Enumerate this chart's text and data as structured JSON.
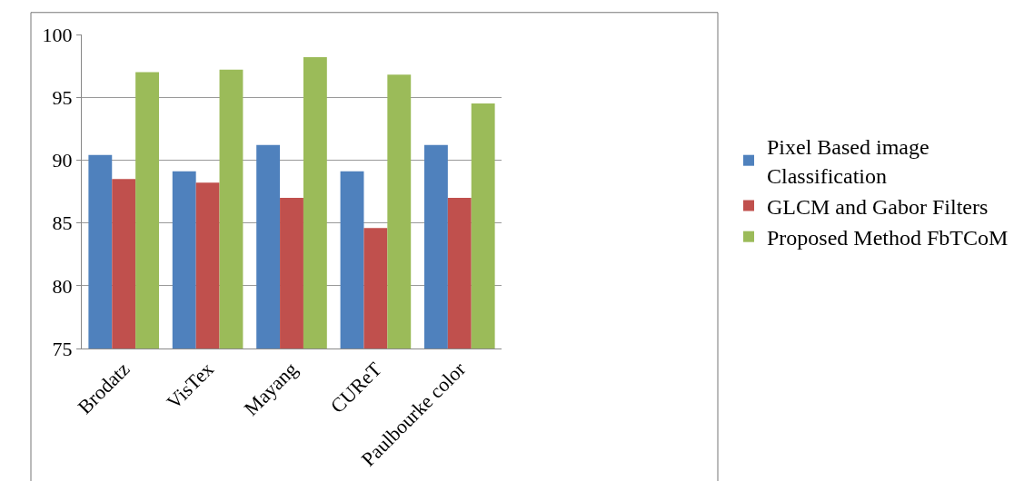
{
  "chart_data": {
    "type": "bar",
    "categories": [
      "Brodatz",
      "VisTex",
      "Mayang",
      "CUReT",
      "Paulbourke color"
    ],
    "series": [
      {
        "name": "Pixel Based image Classification",
        "color": "#4f81bd",
        "values": [
          90.4,
          89.1,
          91.2,
          89.1,
          91.2
        ]
      },
      {
        "name": "GLCM and Gabor Filters",
        "color": "#c0504d",
        "values": [
          88.5,
          88.2,
          87.0,
          84.6,
          87.0
        ]
      },
      {
        "name": "Proposed Method FbTCoM",
        "color": "#9bbb59",
        "values": [
          97.0,
          97.2,
          98.2,
          96.8,
          94.5
        ]
      }
    ],
    "ylim": [
      75,
      100
    ],
    "yticks": [
      75,
      80,
      85,
      90,
      95,
      100
    ],
    "grid": "y",
    "legend": "right"
  }
}
